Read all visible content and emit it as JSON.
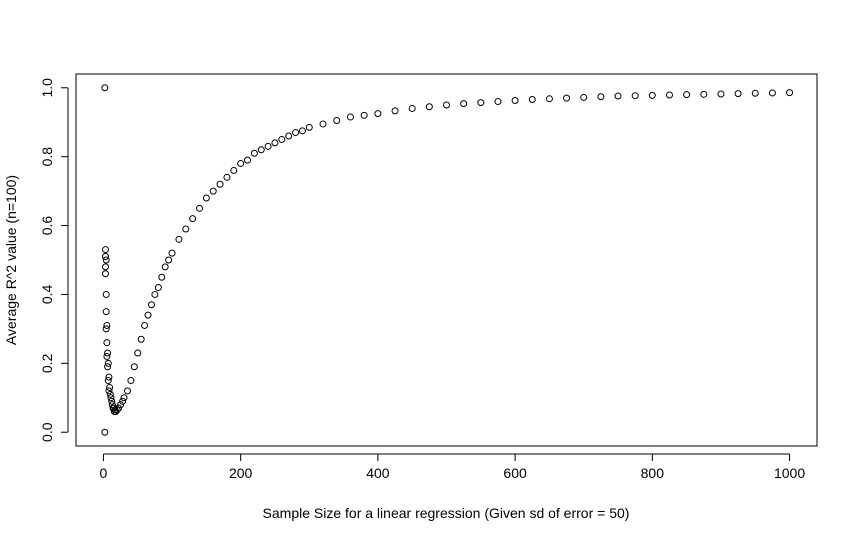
{
  "chart_data": {
    "type": "scatter",
    "title": "",
    "xlabel": "Sample Size for a linear regression (Given sd of error = 50)",
    "ylabel": "Average R^2 value (n=100)",
    "xlim": [
      -40,
      1040
    ],
    "ylim": [
      -0.04,
      1.04
    ],
    "x_ticks": [
      0,
      200,
      400,
      600,
      800,
      1000
    ],
    "x_tick_labels": [
      "0",
      "200",
      "400",
      "600",
      "800",
      "1000"
    ],
    "y_ticks": [
      0.0,
      0.2,
      0.4,
      0.6,
      0.8,
      1.0
    ],
    "y_tick_labels": [
      "0.0",
      "0.2",
      "0.4",
      "0.6",
      "0.8",
      "1.0"
    ],
    "grid": false,
    "legend": "none",
    "marker": "open-circle",
    "series": [
      {
        "x": [
          2,
          2,
          3,
          3,
          3,
          3,
          4,
          4,
          4,
          4,
          5,
          5,
          5,
          6,
          6,
          7,
          7,
          8,
          8,
          9,
          10,
          11,
          12,
          13,
          14,
          15,
          16,
          17,
          18,
          20,
          22,
          25,
          28,
          30,
          35,
          40,
          45,
          50,
          55,
          60,
          65,
          70,
          75,
          80,
          85,
          90,
          95,
          100,
          110,
          120,
          130,
          140,
          150,
          160,
          170,
          180,
          190,
          200,
          210,
          220,
          230,
          240,
          250,
          260,
          270,
          280,
          290,
          300,
          320,
          340,
          360,
          380,
          400,
          425,
          450,
          475,
          500,
          525,
          550,
          575,
          600,
          625,
          650,
          675,
          700,
          725,
          750,
          775,
          800,
          825,
          850,
          875,
          900,
          925,
          950,
          975,
          1000
        ],
        "y": [
          1.0,
          0.0,
          0.53,
          0.51,
          0.48,
          0.46,
          0.5,
          0.4,
          0.35,
          0.3,
          0.31,
          0.26,
          0.22,
          0.23,
          0.19,
          0.2,
          0.15,
          0.16,
          0.12,
          0.13,
          0.11,
          0.1,
          0.09,
          0.08,
          0.07,
          0.07,
          0.06,
          0.065,
          0.06,
          0.065,
          0.07,
          0.08,
          0.09,
          0.1,
          0.12,
          0.15,
          0.19,
          0.23,
          0.27,
          0.31,
          0.34,
          0.37,
          0.4,
          0.42,
          0.45,
          0.48,
          0.5,
          0.52,
          0.56,
          0.59,
          0.62,
          0.65,
          0.68,
          0.7,
          0.72,
          0.74,
          0.76,
          0.78,
          0.79,
          0.81,
          0.82,
          0.83,
          0.84,
          0.85,
          0.86,
          0.87,
          0.875,
          0.885,
          0.895,
          0.905,
          0.915,
          0.92,
          0.925,
          0.933,
          0.94,
          0.945,
          0.95,
          0.954,
          0.957,
          0.96,
          0.963,
          0.966,
          0.968,
          0.97,
          0.972,
          0.974,
          0.976,
          0.977,
          0.978,
          0.979,
          0.98,
          0.981,
          0.982,
          0.983,
          0.984,
          0.985,
          0.986
        ]
      }
    ]
  }
}
